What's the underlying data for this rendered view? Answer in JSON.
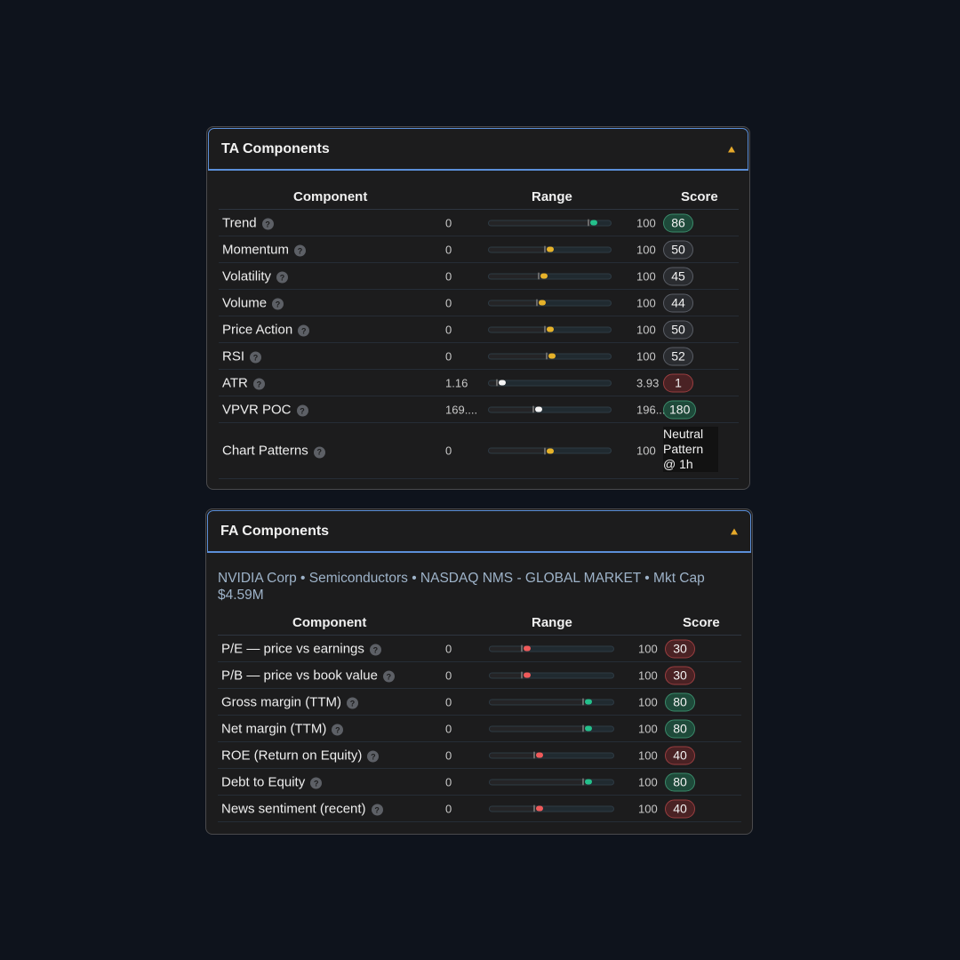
{
  "ta": {
    "title": "TA Components",
    "headers": {
      "component": "Component",
      "range": "Range",
      "score": "Score"
    },
    "rows": [
      {
        "name": "Trend",
        "min": "0",
        "max": "100",
        "frac": 0.86,
        "score": "86",
        "tone": "green",
        "marker": "#24c08b"
      },
      {
        "name": "Momentum",
        "min": "0",
        "max": "100",
        "frac": 0.5,
        "score": "50",
        "tone": "gray",
        "marker": "#e6b22a"
      },
      {
        "name": "Volatility",
        "min": "0",
        "max": "100",
        "frac": 0.45,
        "score": "45",
        "tone": "gray",
        "marker": "#e6b22a"
      },
      {
        "name": "Volume",
        "min": "0",
        "max": "100",
        "frac": 0.44,
        "score": "44",
        "tone": "gray",
        "marker": "#e6b22a"
      },
      {
        "name": "Price Action",
        "min": "0",
        "max": "100",
        "frac": 0.5,
        "score": "50",
        "tone": "gray",
        "marker": "#e6b22a"
      },
      {
        "name": "RSI",
        "min": "0",
        "max": "100",
        "frac": 0.52,
        "score": "52",
        "tone": "gray",
        "marker": "#e6b22a"
      },
      {
        "name": "ATR",
        "min": "1.16",
        "max": "3.93",
        "frac": 0.11,
        "score": "1",
        "tone": "red",
        "marker": "#f4f4f4"
      },
      {
        "name": "VPVR POC",
        "min": "169....",
        "max": "196....",
        "frac": 0.41,
        "score": "180",
        "tone": "green",
        "marker": "#f4f4f4"
      },
      {
        "name": "Chart Patterns",
        "min": "0",
        "max": "100",
        "frac": 0.5,
        "score": "Neutral Pattern @ 1h",
        "tone": "text",
        "marker": "#e6b22a"
      }
    ]
  },
  "fa": {
    "title": "FA Components",
    "meta": "NVIDIA Corp • Semiconductors • NASDAQ NMS - GLOBAL MARKET • Mkt Cap $4.59M",
    "headers": {
      "component": "Component",
      "range": "Range",
      "score": "Score"
    },
    "rows": [
      {
        "name": "P/E — price vs earnings",
        "min": "0",
        "max": "100",
        "frac": 0.3,
        "score": "30",
        "tone": "red",
        "marker": "#ef5a5a"
      },
      {
        "name": "P/B — price vs book value",
        "min": "0",
        "max": "100",
        "frac": 0.3,
        "score": "30",
        "tone": "red",
        "marker": "#ef5a5a"
      },
      {
        "name": "Gross margin (TTM)",
        "min": "0",
        "max": "100",
        "frac": 0.8,
        "score": "80",
        "tone": "green",
        "marker": "#24c08b"
      },
      {
        "name": "Net margin (TTM)",
        "min": "0",
        "max": "100",
        "frac": 0.8,
        "score": "80",
        "tone": "green",
        "marker": "#24c08b"
      },
      {
        "name": "ROE (Return on Equity)",
        "min": "0",
        "max": "100",
        "frac": 0.4,
        "score": "40",
        "tone": "red",
        "marker": "#ef5a5a"
      },
      {
        "name": "Debt to Equity",
        "min": "0",
        "max": "100",
        "frac": 0.8,
        "score": "80",
        "tone": "green",
        "marker": "#24c08b"
      },
      {
        "name": "News sentiment (recent)",
        "min": "0",
        "max": "100",
        "frac": 0.4,
        "score": "40",
        "tone": "red",
        "marker": "#ef5a5a"
      }
    ]
  },
  "icons": {
    "help": "question-circle-icon",
    "toggle": "triangle-up-icon"
  },
  "help_glyph": "?"
}
